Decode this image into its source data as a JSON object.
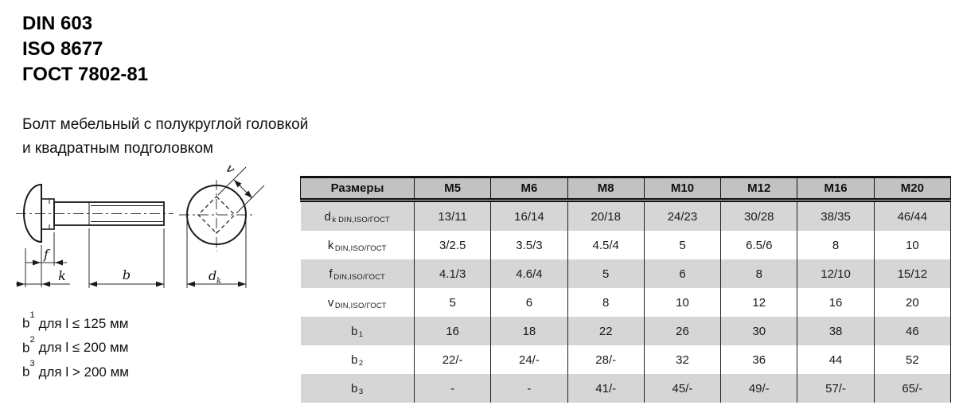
{
  "standards": [
    "DIN 603",
    "ISO 8677",
    "ГОСТ 7802-81"
  ],
  "subtitle": [
    "Болт мебельный с полукруглой головкой",
    "и квадратным подголовком"
  ],
  "drawing": {
    "labels": {
      "f": "f",
      "k": "k",
      "b": "b",
      "v": "v",
      "dk_main": "d",
      "dk_sub": "k"
    }
  },
  "footnotes": [
    {
      "base": "b",
      "sup": "1",
      "text": "для l ≤ 125 мм"
    },
    {
      "base": "b",
      "sup": "2",
      "text": "для l ≤ 200 мм"
    },
    {
      "base": "b",
      "sup": "3",
      "text": "для l > 200 мм"
    }
  ],
  "table": {
    "columns": [
      "Размеры",
      "M5",
      "M6",
      "M8",
      "M10",
      "M12",
      "M16",
      "M20"
    ],
    "rows": [
      {
        "label_main": "d",
        "label_sub": "k DIN,ISO/ГОСТ",
        "values": [
          "13/11",
          "16/14",
          "20/18",
          "24/23",
          "30/28",
          "38/35",
          "46/44"
        ]
      },
      {
        "label_main": "k",
        "label_sub": "DIN,ISO/ГОСТ",
        "values": [
          "3/2.5",
          "3.5/3",
          "4.5/4",
          "5",
          "6.5/6",
          "8",
          "10"
        ]
      },
      {
        "label_main": "f",
        "label_sub": "DIN,ISO/ГОСТ",
        "values": [
          "4.1/3",
          "4.6/4",
          "5",
          "6",
          "8",
          "12/10",
          "15/12"
        ]
      },
      {
        "label_main": "v",
        "label_sub": "DIN,ISO/ГОСТ",
        "values": [
          "5",
          "6",
          "8",
          "10",
          "12",
          "16",
          "20"
        ]
      },
      {
        "label_main": "b",
        "label_sub": "1",
        "values": [
          "16",
          "18",
          "22",
          "26",
          "30",
          "38",
          "46"
        ]
      },
      {
        "label_main": "b",
        "label_sub": "2",
        "values": [
          "22/-",
          "24/-",
          "28/-",
          "32",
          "36",
          "44",
          "52"
        ]
      },
      {
        "label_main": "b",
        "label_sub": "3",
        "values": [
          "-",
          "-",
          "41/-",
          "45/-",
          "49/-",
          "57/-",
          "65/-"
        ]
      }
    ]
  },
  "colors": {
    "header_bg": "#c2c2c2",
    "row_shade": "#d6d6d6",
    "border": "#111111",
    "text": "#1a1a1a"
  }
}
